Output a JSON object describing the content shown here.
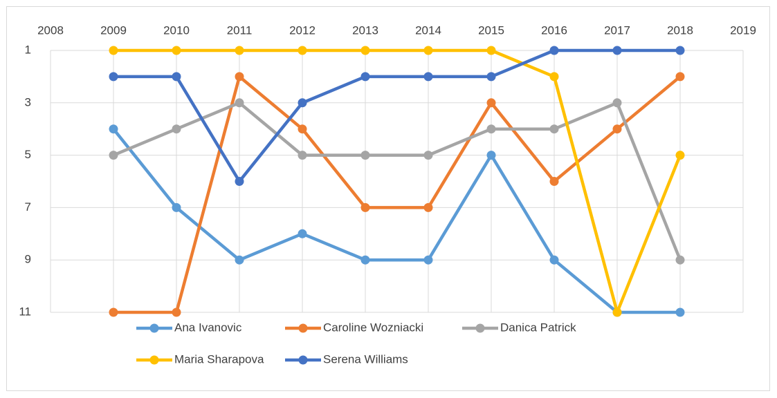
{
  "chart_data": {
    "type": "line",
    "x": [
      2009,
      2010,
      2011,
      2012,
      2013,
      2014,
      2015,
      2016,
      2017,
      2018
    ],
    "xlim": [
      2008,
      2019
    ],
    "xticks": [
      2008,
      2009,
      2010,
      2011,
      2012,
      2013,
      2014,
      2015,
      2016,
      2017,
      2018,
      2019
    ],
    "x_axis_position": "top",
    "ylim": [
      1,
      11
    ],
    "yticks": [
      1,
      3,
      5,
      7,
      9,
      11
    ],
    "y_inverted": true,
    "grid": true,
    "legend_position": "bottom",
    "series": [
      {
        "name": "Ana Ivanovic",
        "color": "#5b9bd5",
        "values": [
          4,
          7,
          9,
          8,
          9,
          9,
          5,
          9,
          11,
          11
        ]
      },
      {
        "name": "Caroline Wozniacki",
        "color": "#ed7d31",
        "values": [
          11,
          11,
          2,
          4,
          7,
          7,
          3,
          6,
          4,
          2
        ]
      },
      {
        "name": "Danica Patrick",
        "color": "#a5a5a5",
        "values": [
          5,
          4,
          3,
          5,
          5,
          5,
          4,
          4,
          3,
          9
        ]
      },
      {
        "name": "Maria Sharapova",
        "color": "#ffc000",
        "values": [
          1,
          1,
          1,
          1,
          1,
          1,
          1,
          2,
          11,
          5
        ]
      },
      {
        "name": "Serena Williams",
        "color": "#4472c4",
        "values": [
          2,
          2,
          6,
          3,
          2,
          2,
          2,
          1,
          1,
          1
        ]
      }
    ]
  }
}
